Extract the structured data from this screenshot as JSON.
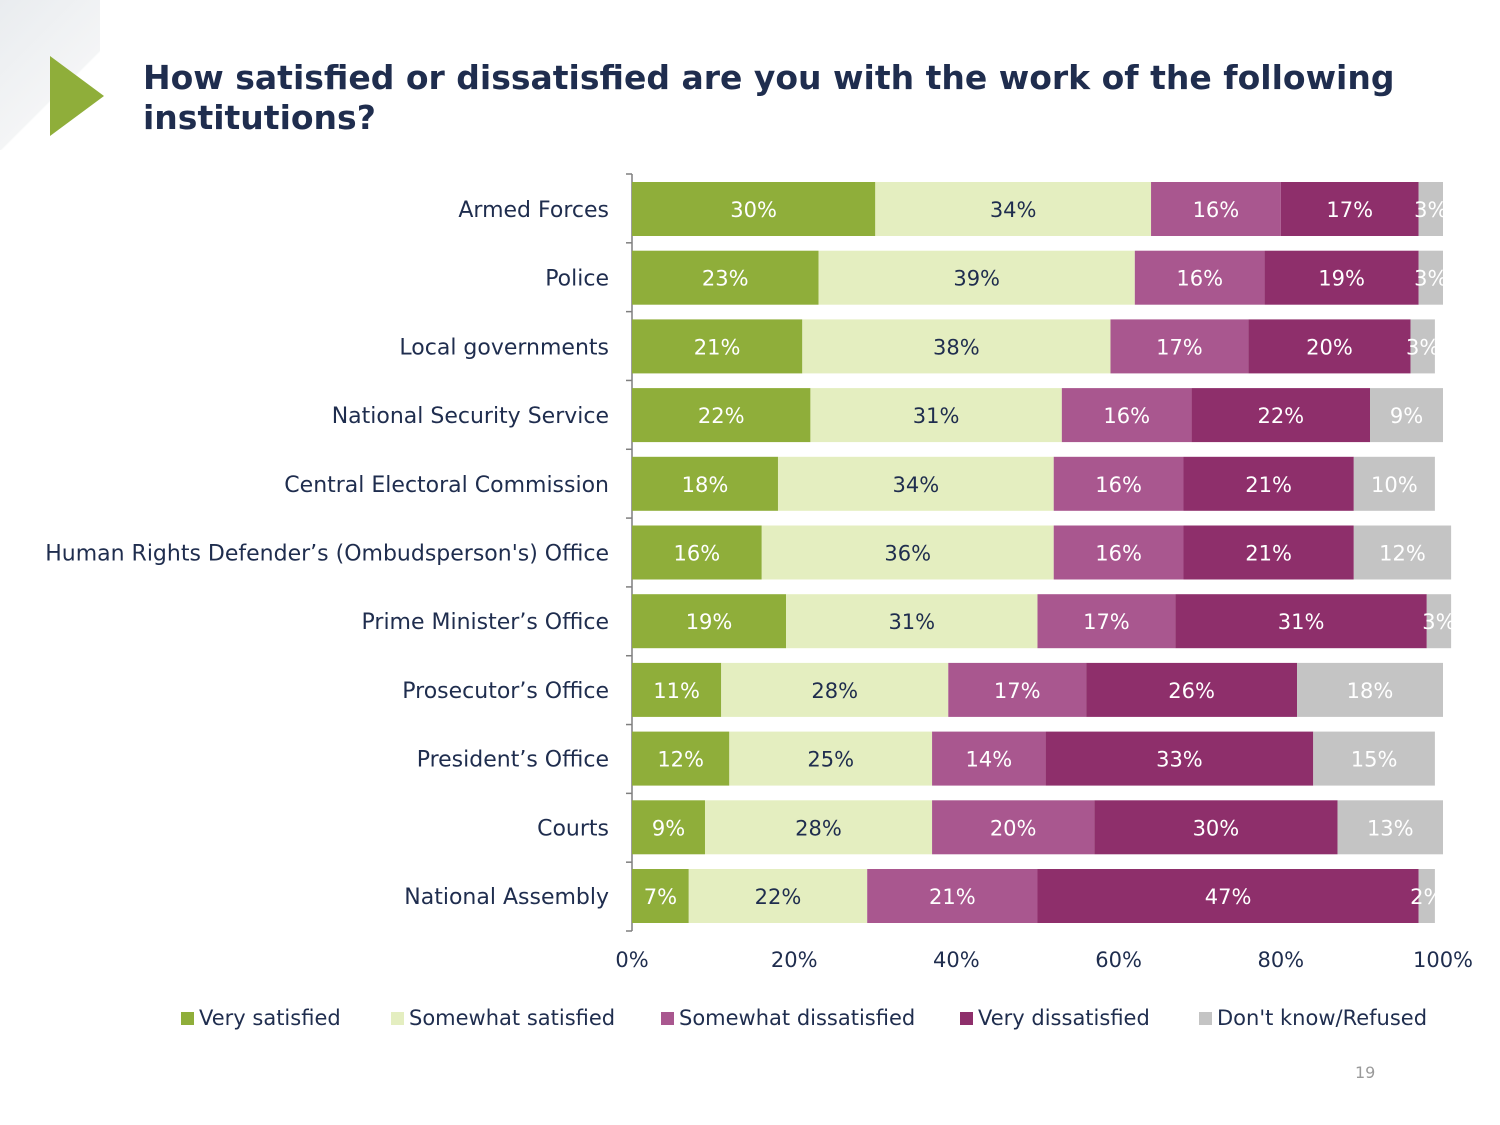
{
  "title": "How satisfied or dissatisfied are you with the work of the following institutions?",
  "page_number": "19",
  "colors": {
    "very_satisfied": "#8fae3a",
    "somewhat_satisfied": "#e4eec0",
    "somewhat_dissatisfied": "#a9578f",
    "very_dissatisfied": "#8e2f6b",
    "dont_know": "#c4c4c4",
    "axis": "#7f7f7f",
    "text_dark": "#1f2d4e"
  },
  "chart_data": {
    "type": "bar",
    "orientation": "horizontal",
    "stacked": true,
    "title": "How satisfied or dissatisfied are you with the work of the following institutions?",
    "categories": [
      "Armed Forces",
      "Police",
      "Local governments",
      "National Security Service",
      "Central Electoral Commission",
      "Human Rights Defender’s (Ombudsperson's) Office",
      "Prime Minister’s Office",
      "Prosecutor’s Office",
      "President’s Office",
      "Courts",
      "National Assembly"
    ],
    "series": [
      {
        "name": "Very satisfied",
        "color": "#8fae3a",
        "label_color": "#ffffff",
        "values": [
          30,
          23,
          21,
          22,
          18,
          16,
          19,
          11,
          12,
          9,
          7
        ]
      },
      {
        "name": "Somewhat satisfied",
        "color": "#e4eec0",
        "label_color": "#1f2d4e",
        "values": [
          34,
          39,
          38,
          31,
          34,
          36,
          31,
          28,
          25,
          28,
          22
        ]
      },
      {
        "name": "Somewhat dissatisfied",
        "color": "#a9578f",
        "label_color": "#ffffff",
        "values": [
          16,
          16,
          17,
          16,
          16,
          16,
          17,
          17,
          14,
          20,
          21
        ]
      },
      {
        "name": "Very dissatisfied",
        "color": "#8e2f6b",
        "label_color": "#ffffff",
        "values": [
          17,
          19,
          20,
          22,
          21,
          21,
          31,
          26,
          33,
          30,
          47
        ]
      },
      {
        "name": "Don't know/Refused",
        "color": "#c4c4c4",
        "label_color": "#ffffff",
        "values": [
          3,
          3,
          3,
          9,
          10,
          12,
          3,
          18,
          15,
          13,
          2
        ]
      }
    ],
    "data_labels": [
      [
        "30%",
        "34%",
        "16%",
        "17%",
        "3%"
      ],
      [
        "23%",
        "39%",
        "16%",
        "19%",
        "3%"
      ],
      [
        "21%",
        "38%",
        "17%",
        "20%",
        "3%"
      ],
      [
        "22%",
        "31%",
        "16%",
        "22%",
        "9%"
      ],
      [
        "18%",
        "34%",
        "16%",
        "21%",
        "10%"
      ],
      [
        "16%",
        "36%",
        "16%",
        "21%",
        "12%"
      ],
      [
        "19%",
        "31%",
        "17%",
        "31%",
        "3%"
      ],
      [
        "11%",
        "28%",
        "17%",
        "26%",
        "18%"
      ],
      [
        "12%",
        "25%",
        "14%",
        "33%",
        "15%"
      ],
      [
        "9%",
        "28%",
        "20%",
        "30%",
        "13%"
      ],
      [
        "7%",
        "22%",
        "21%",
        "47%",
        "2%"
      ]
    ],
    "x_ticks": [
      "0%",
      "20%",
      "40%",
      "60%",
      "80%",
      "100%"
    ],
    "xlim": [
      0,
      100
    ],
    "grid": false,
    "legend_position": "bottom"
  }
}
